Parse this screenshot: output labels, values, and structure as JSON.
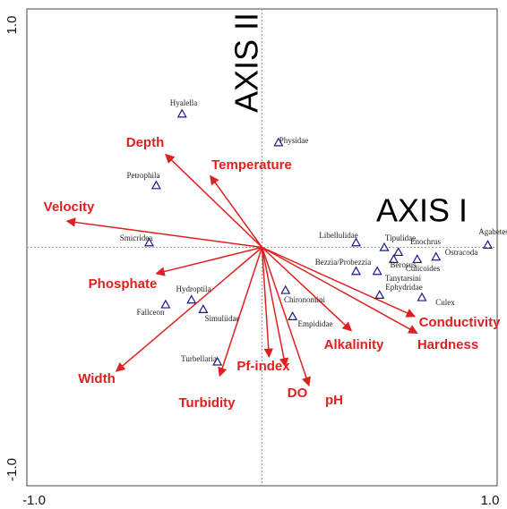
{
  "chart_data": {
    "type": "biplot",
    "xlim": [
      -1,
      1
    ],
    "ylim": [
      -1,
      1
    ],
    "xticks": [
      {
        "value": -1,
        "label": "-1.0"
      },
      {
        "value": 1,
        "label": "1.0"
      }
    ],
    "yticks": [
      {
        "value": -1,
        "label": "-1.0"
      },
      {
        "value": 1,
        "label": "1.0"
      }
    ],
    "x_axis_label": "AXIS I",
    "y_axis_label": "AXIS II",
    "point_color": "#1a1a8c",
    "vector_color": "#e02020",
    "points": {
      "labels": [
        "Hyalella",
        "Physidae",
        "Petrophila",
        "Smicridea",
        "Libellulidae",
        "Tipulidae",
        "Enochrus",
        "Agabetes",
        "Ostracoda",
        "Culicoides",
        "Bezzia/Probezzia",
        "Berosus",
        "Tanytarsini",
        "Ephydridae",
        "Culex",
        "Chironomini",
        "Empididae",
        "Hydroptila",
        "Fallceon",
        "Simuliidae",
        "Turbellaria"
      ],
      "x": [
        -0.34,
        0.07,
        -0.45,
        -0.48,
        0.4,
        0.52,
        0.58,
        0.96,
        0.74,
        0.66,
        0.4,
        0.49,
        0.56,
        0.5,
        0.68,
        0.1,
        0.13,
        -0.3,
        -0.41,
        -0.25,
        -0.19
      ],
      "y": [
        0.56,
        0.44,
        0.26,
        0.02,
        0.02,
        0.0,
        -0.02,
        0.01,
        -0.04,
        -0.05,
        -0.1,
        -0.1,
        -0.05,
        -0.2,
        -0.21,
        -0.18,
        -0.29,
        -0.22,
        -0.24,
        -0.26,
        -0.48
      ]
    },
    "vectors": {
      "labels": [
        "Depth",
        "Temperature",
        "Velocity",
        "Phosphate",
        "Width",
        "Turbidity",
        "Pf-index",
        "DO",
        "pH",
        "Alkalinity",
        "Conductivity",
        "Hardness"
      ],
      "x": [
        -0.41,
        -0.22,
        -0.83,
        -0.45,
        -0.62,
        -0.18,
        0.03,
        0.1,
        0.2,
        0.38,
        0.65,
        0.66
      ],
      "y": [
        0.39,
        0.3,
        0.11,
        -0.11,
        -0.52,
        -0.54,
        -0.46,
        -0.5,
        -0.58,
        -0.35,
        -0.29,
        -0.36
      ]
    }
  }
}
